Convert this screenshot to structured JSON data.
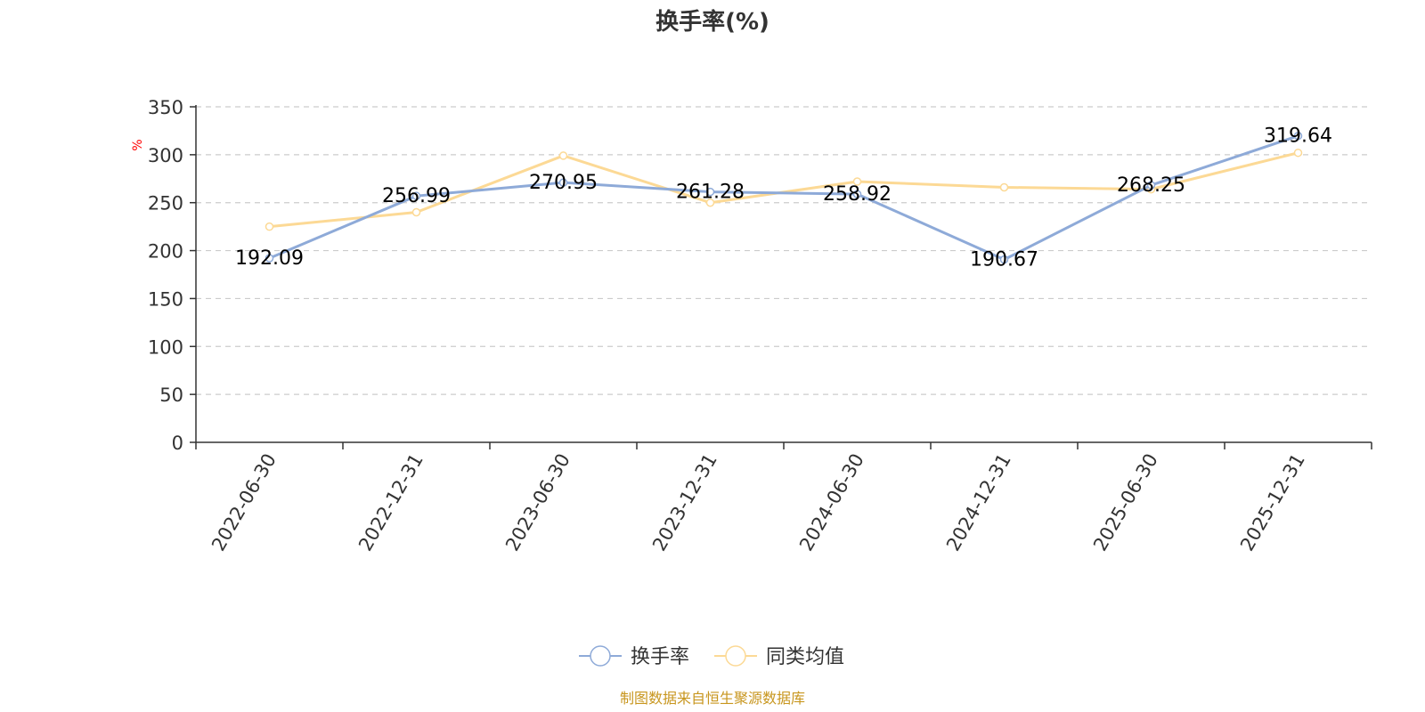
{
  "chart_data": {
    "type": "line",
    "title": "换手率(%)",
    "ylabel": "%",
    "xlabel": "",
    "ylim": [
      0,
      350
    ],
    "yticks": [
      0,
      50,
      100,
      150,
      200,
      250,
      300,
      350
    ],
    "grid": true,
    "legend_position": "bottom",
    "categories": [
      "2022-06-30",
      "2022-12-31",
      "2023-06-30",
      "2023-12-31",
      "2024-06-30",
      "2024-12-31",
      "2025-06-30",
      "2025-12-31"
    ],
    "series": [
      {
        "name": "换手率",
        "color": "#8eaad8",
        "values": [
          192.09,
          256.99,
          270.95,
          261.28,
          258.92,
          190.67,
          268.25,
          319.64
        ],
        "show_labels": true,
        "labels": [
          "192.09",
          "256.99",
          "270.95",
          "261.28",
          "258.92",
          "190.67",
          "268.25",
          "319.64"
        ]
      },
      {
        "name": "同类均值",
        "color": "#fcd995",
        "values": [
          225,
          240,
          299,
          250,
          272,
          266,
          264,
          302
        ],
        "show_labels": false
      }
    ],
    "source": "制图数据来自恒生聚源数据库"
  }
}
